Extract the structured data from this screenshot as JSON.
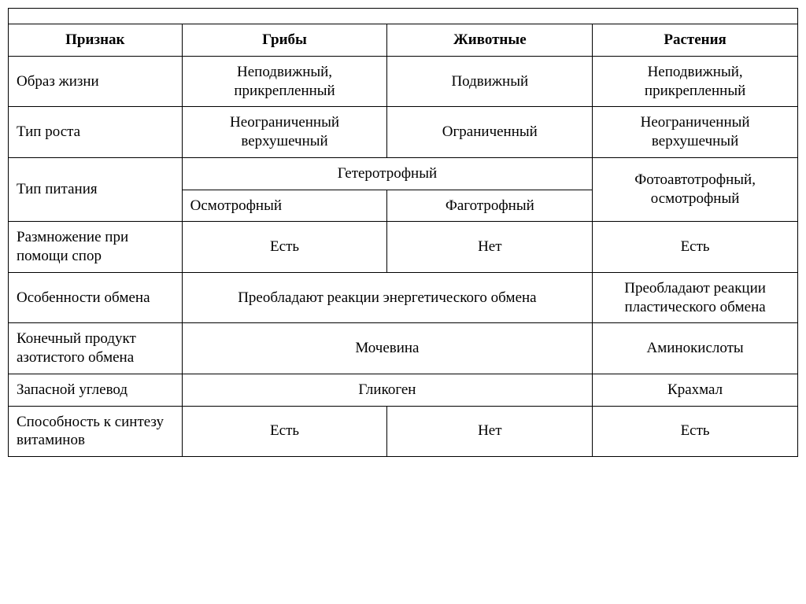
{
  "table": {
    "type": "table",
    "background_color": "#ffffff",
    "border_color": "#000000",
    "font_family": "Georgia, serif",
    "font_size_header": 19,
    "font_size_body": 19,
    "columns": [
      {
        "key": "trait",
        "label": "Признак",
        "width_pct": 22,
        "align": "left"
      },
      {
        "key": "fungi",
        "label": "Грибы",
        "width_pct": 26,
        "align": "center"
      },
      {
        "key": "animals",
        "label": "Животные",
        "width_pct": 26,
        "align": "center"
      },
      {
        "key": "plants",
        "label": "Растения",
        "width_pct": 26,
        "align": "center"
      }
    ],
    "rows": {
      "lifestyle": {
        "trait": "Образ жизни",
        "fungi": "Неподвижный, прикрепленный",
        "animals": "Подвижный",
        "plants": "Неподвижный, прикрепленный"
      },
      "growth": {
        "trait": "Тип роста",
        "fungi": "Неограниченный верхушечный",
        "animals": "Ограниченный",
        "plants": "Неограниченный верхушечный"
      },
      "nutrition": {
        "trait": "Тип питания",
        "fungi_animals_top": "Гетеротрофный",
        "fungi_bottom": "Осмотрофный",
        "animals_bottom": "Фаготрофный",
        "plants": "Фотоавтотрофный, осмотрофный"
      },
      "spores": {
        "trait": "Размножение при помощи спор",
        "fungi": "Есть",
        "animals": "Нет",
        "plants": "Есть"
      },
      "metabolism": {
        "trait": "Особенности обмена",
        "fungi_animals": "Преобладают реакции энергетического обмена",
        "plants": "Преобладают реакции пластического обмена"
      },
      "nitrogen": {
        "trait": "Конечный продукт азотистого обмена",
        "fungi_animals": "Мочевина",
        "plants": "Аминокислоты"
      },
      "carbohydrate": {
        "trait": "Запасной углевод",
        "fungi_animals": "Гликоген",
        "plants": "Крахмал"
      },
      "vitamins": {
        "trait": "Способность к синтезу витаминов",
        "fungi": "Есть",
        "animals": "Нет",
        "plants": "Есть"
      }
    }
  }
}
